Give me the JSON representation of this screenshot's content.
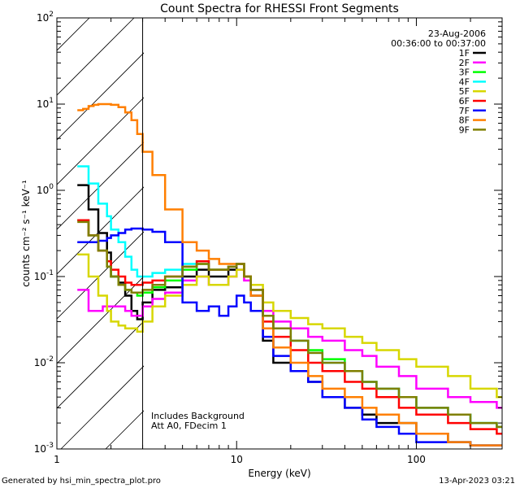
{
  "chart_data": {
    "type": "line",
    "title": "Count Spectra for RHESSI Front Segments",
    "xlabel": "Energy (keV)",
    "ylabel": "counts cm⁻² s⁻¹ keV⁻¹",
    "xscale": "log",
    "yscale": "log",
    "xlim": [
      1,
      300
    ],
    "ylim": [
      0.001,
      100
    ],
    "x_tick_labels": [
      "1",
      "10",
      "100"
    ],
    "y_tick_labels": [
      {
        "base": "10",
        "exp": "-3"
      },
      {
        "base": "10",
        "exp": "-2"
      },
      {
        "base": "10",
        "exp": "-1"
      },
      {
        "base": "10",
        "exp": "0"
      },
      {
        "base": "10",
        "exp": "1"
      },
      {
        "base": "10",
        "exp": "2"
      }
    ],
    "hatched_region": {
      "from": 1,
      "to": 3
    },
    "date": "23-Aug-2006",
    "time_range": "00:36:00 to 00:37:00",
    "annotations": [
      "Includes Background",
      "Att A0, FDecim 1"
    ],
    "legend_position": "top-right",
    "series": [
      {
        "name": "1F",
        "color": "#000000",
        "x": [
          1.3,
          1.4,
          1.5,
          1.6,
          1.7,
          1.8,
          1.9,
          2.0,
          2.2,
          2.4,
          2.6,
          2.8,
          3.0,
          3.4,
          4,
          5,
          6,
          7,
          8,
          9,
          10,
          11,
          12,
          14,
          16,
          20,
          25,
          30,
          40,
          50,
          60,
          80,
          100,
          150,
          200,
          280
        ],
        "y": [
          1.15,
          1.15,
          0.6,
          0.6,
          0.32,
          0.32,
          0.19,
          0.1,
          0.085,
          0.06,
          0.04,
          0.032,
          0.05,
          0.07,
          0.075,
          0.1,
          0.12,
          0.1,
          0.1,
          0.12,
          0.14,
          0.1,
          0.06,
          0.018,
          0.01,
          0.008,
          0.006,
          0.004,
          0.003,
          0.0025,
          0.002,
          0.002,
          0.0015,
          0.0012,
          0.0011,
          0.0011
        ]
      },
      {
        "name": "2F",
        "color": "#ff00ff",
        "x": [
          1.3,
          1.4,
          1.5,
          1.6,
          1.7,
          1.8,
          1.9,
          2.0,
          2.2,
          2.4,
          2.6,
          2.8,
          3.0,
          3.4,
          4,
          5,
          6,
          7,
          8,
          9,
          10,
          11,
          12,
          14,
          16,
          20,
          25,
          30,
          40,
          50,
          60,
          80,
          100,
          150,
          200,
          280
        ],
        "y": [
          0.07,
          0.07,
          0.04,
          0.04,
          0.04,
          0.045,
          0.045,
          0.045,
          0.045,
          0.04,
          0.035,
          0.035,
          0.045,
          0.055,
          0.065,
          0.09,
          0.1,
          0.08,
          0.08,
          0.1,
          0.12,
          0.09,
          0.07,
          0.04,
          0.03,
          0.025,
          0.02,
          0.018,
          0.014,
          0.012,
          0.009,
          0.007,
          0.005,
          0.004,
          0.0035,
          0.003
        ]
      },
      {
        "name": "3F",
        "color": "#00ff00",
        "x": [
          1.3,
          1.4,
          1.5,
          1.6,
          1.7,
          1.8,
          1.9,
          2.0,
          2.2,
          2.4,
          2.6,
          2.8,
          3.0,
          3.4,
          4,
          5,
          6,
          7,
          8,
          9,
          10,
          11,
          12,
          14,
          16,
          20,
          25,
          30,
          40,
          50,
          60,
          80,
          100,
          150,
          200,
          280
        ],
        "y": [
          0.45,
          0.45,
          0.3,
          0.3,
          0.2,
          0.2,
          0.13,
          0.1,
          0.08,
          0.07,
          0.065,
          0.06,
          0.065,
          0.075,
          0.09,
          0.12,
          0.14,
          0.12,
          0.12,
          0.13,
          0.14,
          0.1,
          0.07,
          0.035,
          0.025,
          0.018,
          0.014,
          0.011,
          0.008,
          0.006,
          0.005,
          0.004,
          0.003,
          0.0025,
          0.002,
          0.0018
        ]
      },
      {
        "name": "4F",
        "color": "#00ffff",
        "x": [
          1.3,
          1.4,
          1.5,
          1.6,
          1.7,
          1.8,
          1.9,
          2.0,
          2.2,
          2.4,
          2.6,
          2.8,
          3.0,
          3.4,
          4,
          5,
          6,
          7,
          8,
          9,
          10,
          11,
          12,
          14,
          16,
          20,
          25,
          30,
          40,
          50,
          60,
          80,
          100,
          150,
          200,
          280
        ],
        "y": [
          1.9,
          1.9,
          1.2,
          1.2,
          0.7,
          0.7,
          0.5,
          0.35,
          0.25,
          0.17,
          0.12,
          0.1,
          0.1,
          0.11,
          0.12,
          0.14,
          0.15,
          0.12,
          0.12,
          0.13,
          0.14,
          0.1,
          0.07,
          0.035,
          0.025,
          0.018,
          0.013,
          0.01,
          0.008,
          0.006,
          0.005,
          0.004,
          0.003,
          0.0025,
          0.002,
          0.0018
        ]
      },
      {
        "name": "5F",
        "color": "#d7d700",
        "x": [
          1.3,
          1.4,
          1.5,
          1.6,
          1.7,
          1.8,
          1.9,
          2.0,
          2.2,
          2.4,
          2.6,
          2.8,
          3.0,
          3.4,
          4,
          5,
          6,
          7,
          8,
          9,
          10,
          11,
          12,
          14,
          16,
          20,
          25,
          30,
          40,
          50,
          60,
          80,
          100,
          150,
          200,
          280
        ],
        "y": [
          0.18,
          0.18,
          0.1,
          0.1,
          0.06,
          0.06,
          0.04,
          0.03,
          0.027,
          0.025,
          0.025,
          0.023,
          0.03,
          0.045,
          0.06,
          0.08,
          0.1,
          0.08,
          0.08,
          0.1,
          0.12,
          0.1,
          0.08,
          0.05,
          0.04,
          0.033,
          0.028,
          0.025,
          0.02,
          0.017,
          0.014,
          0.011,
          0.009,
          0.007,
          0.005,
          0.004
        ]
      },
      {
        "name": "6F",
        "color": "#ff0000",
        "x": [
          1.3,
          1.4,
          1.5,
          1.6,
          1.7,
          1.8,
          1.9,
          2.0,
          2.2,
          2.4,
          2.6,
          2.8,
          3.0,
          3.4,
          4,
          5,
          6,
          7,
          8,
          9,
          10,
          11,
          12,
          14,
          16,
          20,
          25,
          30,
          40,
          50,
          60,
          80,
          100,
          150,
          200,
          280
        ],
        "y": [
          0.45,
          0.45,
          0.3,
          0.3,
          0.2,
          0.2,
          0.15,
          0.12,
          0.1,
          0.085,
          0.08,
          0.08,
          0.085,
          0.09,
          0.1,
          0.13,
          0.15,
          0.12,
          0.12,
          0.13,
          0.14,
          0.1,
          0.07,
          0.03,
          0.02,
          0.014,
          0.01,
          0.008,
          0.006,
          0.005,
          0.004,
          0.003,
          0.0025,
          0.002,
          0.0017,
          0.0015
        ]
      },
      {
        "name": "7F",
        "color": "#0000ff",
        "x": [
          1.3,
          1.4,
          1.5,
          1.6,
          1.7,
          1.8,
          1.9,
          2.0,
          2.2,
          2.4,
          2.6,
          2.8,
          3.0,
          3.4,
          4,
          5,
          6,
          7,
          8,
          9,
          10,
          11,
          12,
          14,
          16,
          20,
          25,
          30,
          40,
          50,
          60,
          80,
          100,
          150,
          200,
          280
        ],
        "y": [
          0.25,
          0.25,
          0.25,
          0.25,
          0.26,
          0.26,
          0.28,
          0.3,
          0.32,
          0.35,
          0.36,
          0.36,
          0.35,
          0.33,
          0.25,
          0.05,
          0.04,
          0.045,
          0.035,
          0.045,
          0.06,
          0.05,
          0.04,
          0.02,
          0.012,
          0.008,
          0.006,
          0.004,
          0.003,
          0.0022,
          0.0018,
          0.0015,
          0.0012,
          0.0012,
          0.0011,
          0.0011
        ]
      },
      {
        "name": "8F",
        "color": "#ff7f00",
        "x": [
          1.3,
          1.4,
          1.5,
          1.6,
          1.7,
          1.8,
          1.9,
          2.0,
          2.2,
          2.4,
          2.6,
          2.8,
          3.0,
          3.4,
          4,
          5,
          6,
          7,
          8,
          9,
          10,
          11,
          12,
          14,
          16,
          20,
          25,
          30,
          40,
          50,
          60,
          80,
          100,
          150,
          200,
          280
        ],
        "y": [
          8.5,
          8.8,
          9.5,
          9.8,
          10,
          10,
          10,
          9.8,
          9.2,
          8,
          6.5,
          4.5,
          2.8,
          1.5,
          0.6,
          0.25,
          0.2,
          0.16,
          0.14,
          0.14,
          0.14,
          0.1,
          0.06,
          0.025,
          0.015,
          0.01,
          0.007,
          0.005,
          0.004,
          0.003,
          0.0025,
          0.002,
          0.0015,
          0.0012,
          0.0011,
          0.0011
        ]
      },
      {
        "name": "9F",
        "color": "#7f7f00",
        "x": [
          1.3,
          1.4,
          1.5,
          1.6,
          1.7,
          1.8,
          1.9,
          2.0,
          2.2,
          2.4,
          2.6,
          2.8,
          3.0,
          3.4,
          4,
          5,
          6,
          7,
          8,
          9,
          10,
          11,
          12,
          14,
          16,
          20,
          25,
          30,
          40,
          50,
          60,
          80,
          100,
          150,
          200,
          280
        ],
        "y": [
          0.43,
          0.43,
          0.3,
          0.3,
          0.2,
          0.2,
          0.13,
          0.1,
          0.08,
          0.07,
          0.065,
          0.065,
          0.07,
          0.08,
          0.1,
          0.13,
          0.14,
          0.12,
          0.12,
          0.13,
          0.14,
          0.1,
          0.07,
          0.035,
          0.025,
          0.018,
          0.013,
          0.01,
          0.008,
          0.006,
          0.005,
          0.004,
          0.003,
          0.0025,
          0.002,
          0.0018
        ]
      }
    ]
  },
  "footer": {
    "left": "Generated by hsi_min_spectra_plot.pro",
    "right": "13-Apr-2023 03:21"
  }
}
